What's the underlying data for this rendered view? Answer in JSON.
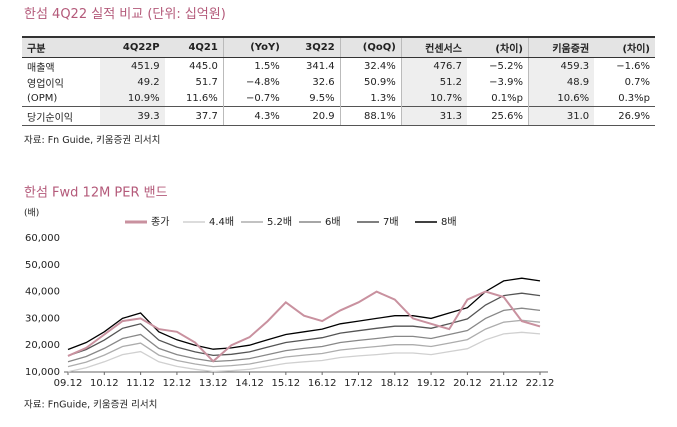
{
  "table": {
    "title": "한섬 4Q22 실적 비교 (단위: 십억원)",
    "header": [
      "구분",
      "4Q22P",
      "4Q21",
      "(YoY)",
      "3Q22",
      "(QoQ)",
      "컨센서스",
      "(차이)",
      "키움증권",
      "(차이)"
    ],
    "rows": [
      [
        "매출액",
        "451.9",
        "445.0",
        "1.5%",
        "341.4",
        "32.4%",
        "476.7",
        "−5.2%",
        "459.3",
        "−1.6%"
      ],
      [
        "영업이익",
        "49.2",
        "51.7",
        "−4.8%",
        "32.6",
        "50.9%",
        "51.2",
        "−3.9%",
        "48.9",
        "0.7%"
      ],
      [
        "(OPM)",
        "10.9%",
        "11.6%",
        "−0.7%",
        "9.5%",
        "1.3%",
        "10.7%",
        "0.1%p",
        "10.6%",
        "0.3%p"
      ],
      [
        "당기순이익",
        "39.3",
        "37.7",
        "4.3%",
        "20.9",
        "88.1%",
        "31.3",
        "25.6%",
        "31.0",
        "26.9%"
      ]
    ],
    "source": "자료: Fn Guide, 키움증권 리서치"
  },
  "chart_data": {
    "type": "line",
    "title": "한섬 Fwd 12M PER 밴드",
    "y_label": "(배)",
    "x": [
      "09.12",
      null,
      "10.12",
      null,
      "11.12",
      null,
      "12.12",
      null,
      "13.12",
      null,
      "14.12",
      null,
      "15.12",
      null,
      "16.12",
      null,
      "17.12",
      null,
      "18.12",
      null,
      "19.12",
      null,
      "20.12",
      null,
      "21.12",
      null,
      "22.12"
    ],
    "ylim": [
      10000,
      60000
    ],
    "yticks": [
      {
        "value": 10000,
        "label": "10,000"
      },
      {
        "value": 20000,
        "label": "20,000"
      },
      {
        "value": 30000,
        "label": "30,000"
      },
      {
        "value": 40000,
        "label": "40,000"
      },
      {
        "value": 50000,
        "label": "50,000"
      },
      {
        "value": 60000,
        "label": "60,000"
      }
    ],
    "grid": false,
    "series": [
      {
        "name": "종가",
        "color": "#c9919f",
        "values": [
          16000,
          19000,
          24000,
          29000,
          30000,
          26000,
          25000,
          21000,
          14000,
          20000,
          23000,
          29000,
          36000,
          31000,
          29000,
          33000,
          36000,
          40000,
          37000,
          30000,
          28000,
          26000,
          37000,
          40000,
          38000,
          29000,
          27000
        ]
      },
      {
        "name": "4.4배",
        "color": "#d0d0d0",
        "values": [
          10100,
          11600,
          13800,
          16500,
          17600,
          13800,
          12100,
          11000,
          10200,
          10500,
          11000,
          12100,
          13200,
          13800,
          14300,
          15400,
          16000,
          16500,
          17100,
          17100,
          16500,
          17600,
          18700,
          22000,
          24200,
          24800,
          24200
        ]
      },
      {
        "name": "5.2배",
        "color": "#adadad",
        "values": [
          12000,
          13700,
          16300,
          19500,
          20800,
          16300,
          14300,
          13000,
          12000,
          12400,
          13000,
          14300,
          15600,
          16300,
          16900,
          18200,
          18900,
          19500,
          20200,
          20200,
          19500,
          20800,
          22100,
          26000,
          28600,
          29300,
          28600
        ]
      },
      {
        "name": "6배",
        "color": "#888888",
        "values": [
          13800,
          15800,
          18800,
          22500,
          24000,
          18800,
          16500,
          15000,
          13900,
          14300,
          15000,
          16500,
          18000,
          18800,
          19500,
          21000,
          21800,
          22500,
          23300,
          23300,
          22500,
          24000,
          25500,
          30000,
          33000,
          33800,
          33000
        ]
      },
      {
        "name": "7배",
        "color": "#555555",
        "values": [
          16100,
          18400,
          21900,
          26300,
          28000,
          21900,
          19300,
          17500,
          16200,
          16600,
          17500,
          19300,
          21000,
          21900,
          22800,
          24500,
          25400,
          26300,
          27100,
          27100,
          26300,
          28000,
          29800,
          35000,
          38500,
          39400,
          38500
        ]
      },
      {
        "name": "8배",
        "color": "#000000",
        "values": [
          18400,
          21000,
          25000,
          30000,
          32000,
          25000,
          22000,
          20000,
          18500,
          19000,
          20000,
          22000,
          24000,
          25000,
          26000,
          28000,
          29000,
          30000,
          31000,
          31000,
          30000,
          32000,
          34000,
          40000,
          44000,
          45000,
          44000
        ]
      }
    ],
    "source": "자료: FnGuide, 키움증권 리서치"
  }
}
